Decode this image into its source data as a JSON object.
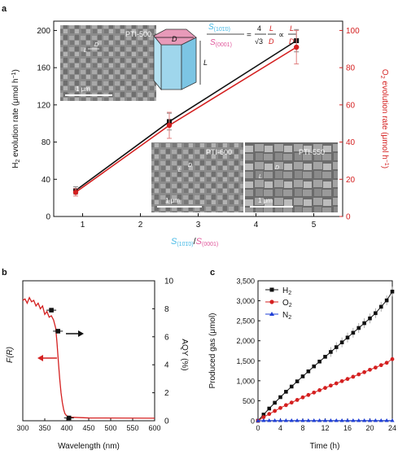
{
  "panels": {
    "a": "a",
    "b": "b",
    "c": "c"
  },
  "colors": {
    "black": "#111111",
    "red": "#d42020",
    "blue": "#1f3fd6",
    "cyan": "#45b9e6",
    "pink": "#e0559a",
    "grey": "#bdbdbd"
  },
  "panel_a": {
    "insets": {
      "tl": {
        "label": "PTI-500",
        "scale": "1 μm",
        "mark_l": "L",
        "mark_d": "D"
      },
      "mid": {
        "label": "PTI-600",
        "scale": "1 μm",
        "mark_l": "L",
        "mark_d": "D"
      },
      "right": {
        "label": "PTI-550",
        "scale": "1 μm",
        "mark_l": "L",
        "mark_d": "D"
      }
    },
    "prism": {
      "label_d": "D",
      "label_l": "L"
    },
    "equation": {
      "num_s": "S",
      "num_sub": "(10",
      "num_sub_bar": "1",
      "num_sub_end": "0)",
      "den_s": "S",
      "den_sub": "(0001)",
      "eq": "=",
      "four": "4",
      "sqrt3": "√3",
      "prop": "∝",
      "L": "L",
      "D": "D"
    },
    "xlabel": {
      "s1": "S",
      "sub1": "(10",
      "sub1_bar": "1",
      "sub1_end": "0)",
      "slash": "/",
      "s2": "S",
      "sub2": "(0001)"
    },
    "ylabel_left": {
      "a": "H",
      "b": "2",
      "c": " evolution rate (μmol h",
      "d": "−1",
      "e": ")"
    },
    "ylabel_right": {
      "a": "O",
      "b": "2",
      "c": " evolution rate (μmol h",
      "d": "−1",
      "e": ")"
    }
  },
  "panel_b": {
    "xlabel": "Wavelength (nm)",
    "ylabel_left": "F(R)",
    "ylabel_right": "AQY (%)"
  },
  "panel_c": {
    "xlabel": "Time (h)",
    "ylabel": "Produced gas (μmol)",
    "legend": [
      {
        "sym": "H",
        "sub": "2"
      },
      {
        "sym": "O",
        "sub": "2"
      },
      {
        "sym": "N",
        "sub": "2"
      }
    ]
  },
  "chart_data": [
    {
      "type": "line",
      "xlim": [
        0.5,
        5.5
      ],
      "ylim_left": [
        0,
        210
      ],
      "ylim_right": [
        0,
        105
      ],
      "xticks": [
        1,
        2,
        3,
        4,
        5
      ],
      "yticks_left": [
        0,
        40,
        80,
        120,
        160,
        200
      ],
      "yticks_right": [
        0,
        20,
        40,
        60,
        80,
        100
      ],
      "series": [
        {
          "axis": "left",
          "color": "#111111",
          "x": [
            0.88,
            2.5,
            4.7
          ],
          "y": [
            28,
            102,
            189
          ],
          "err": [
            4,
            9,
            12
          ]
        },
        {
          "axis": "right",
          "color": "#d42020",
          "x": [
            0.88,
            2.5,
            4.7
          ],
          "y": [
            13,
            49,
            91
          ],
          "err": [
            2,
            7,
            9
          ]
        }
      ]
    },
    {
      "type": "line",
      "xlim": [
        300,
        600
      ],
      "ylim_right": [
        0,
        10
      ],
      "xticks": [
        300,
        350,
        400,
        450,
        500,
        550,
        600
      ],
      "yticks_right": [
        0,
        2,
        4,
        6,
        8,
        10
      ],
      "absorption_frel": [
        [
          300,
          0.86
        ],
        [
          305,
          0.87
        ],
        [
          310,
          0.84
        ],
        [
          315,
          0.88
        ],
        [
          320,
          0.85
        ],
        [
          325,
          0.86
        ],
        [
          330,
          0.82
        ],
        [
          335,
          0.84
        ],
        [
          340,
          0.8
        ],
        [
          345,
          0.82
        ],
        [
          350,
          0.76
        ],
        [
          355,
          0.78
        ],
        [
          360,
          0.74
        ],
        [
          365,
          0.75
        ],
        [
          370,
          0.72
        ],
        [
          375,
          0.66
        ],
        [
          378,
          0.55
        ],
        [
          381,
          0.42
        ],
        [
          384,
          0.3
        ],
        [
          387,
          0.2
        ],
        [
          390,
          0.13
        ],
        [
          393,
          0.08
        ],
        [
          396,
          0.05
        ],
        [
          400,
          0.035
        ],
        [
          410,
          0.025
        ],
        [
          450,
          0.02
        ],
        [
          600,
          0.018
        ]
      ],
      "aqy": {
        "x": [
          365,
          380,
          405
        ],
        "y": [
          7.9,
          6.4,
          0.2
        ]
      }
    },
    {
      "type": "line",
      "xlim": [
        0,
        24
      ],
      "ylim": [
        0,
        3500
      ],
      "xticks": [
        0,
        4,
        8,
        12,
        16,
        20,
        24
      ],
      "yticks": [
        0,
        500,
        1000,
        1500,
        2000,
        2500,
        3000,
        3500
      ],
      "ytick_labels": [
        "0",
        "500",
        "1,000",
        "1,500",
        "2,000",
        "2,500",
        "3,000",
        "3,500"
      ],
      "x": [
        0,
        1,
        2,
        3,
        4,
        5,
        6,
        7,
        8,
        9,
        10,
        11,
        12,
        13,
        14,
        15,
        16,
        17,
        18,
        19,
        20,
        21,
        22,
        23,
        24
      ],
      "series": [
        {
          "name": "H2",
          "color": "#111111",
          "values": [
            0,
            155,
            305,
            450,
            590,
            725,
            855,
            985,
            1110,
            1235,
            1360,
            1480,
            1600,
            1720,
            1840,
            1960,
            2080,
            2200,
            2320,
            2440,
            2560,
            2690,
            2850,
            3010,
            3230
          ]
        },
        {
          "name": "O2",
          "color": "#d42020",
          "values": [
            0,
            90,
            170,
            245,
            320,
            390,
            455,
            520,
            585,
            645,
            705,
            765,
            820,
            880,
            935,
            990,
            1045,
            1100,
            1160,
            1215,
            1275,
            1330,
            1390,
            1450,
            1540
          ]
        },
        {
          "name": "N2",
          "color": "#1f3fd6",
          "values": [
            0,
            5,
            5,
            5,
            5,
            5,
            5,
            5,
            5,
            5,
            5,
            5,
            5,
            5,
            5,
            5,
            5,
            5,
            5,
            5,
            5,
            5,
            5,
            5,
            5
          ]
        }
      ]
    }
  ]
}
